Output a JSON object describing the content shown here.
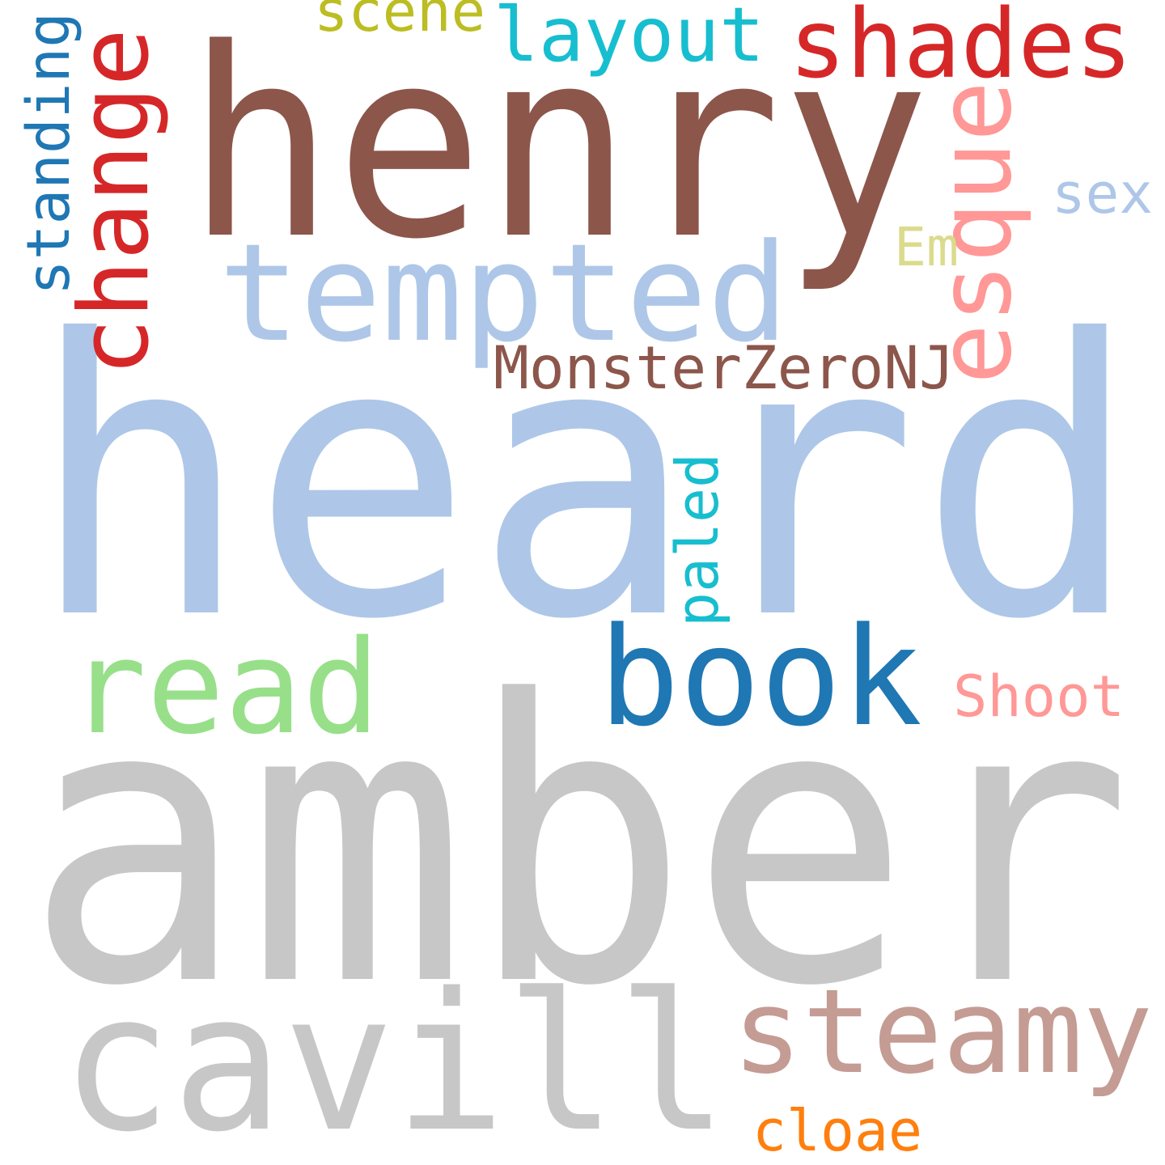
{
  "words": [
    {
      "text": "heard",
      "color": "#aec7e8",
      "vertical": false
    },
    {
      "text": "amber",
      "color": "#c7c7c7",
      "vertical": false
    },
    {
      "text": "henry",
      "color": "#8c564b",
      "vertical": false
    },
    {
      "text": "tempted",
      "color": "#aec7e8",
      "vertical": false
    },
    {
      "text": "cavill",
      "color": "#c7c7c7",
      "vertical": false
    },
    {
      "text": "steamy",
      "color": "#c49c94",
      "vertical": false
    },
    {
      "text": "book",
      "color": "#1f77b4",
      "vertical": false
    },
    {
      "text": "read",
      "color": "#98df8a",
      "vertical": false
    },
    {
      "text": "shades",
      "color": "#d62728",
      "vertical": false
    },
    {
      "text": "layout",
      "color": "#17becf",
      "vertical": false
    },
    {
      "text": "scene",
      "color": "#bcbd22",
      "vertical": false
    },
    {
      "text": "change",
      "color": "#d62728",
      "vertical": true
    },
    {
      "text": "standing",
      "color": "#1f77b4",
      "vertical": true
    },
    {
      "text": "esque",
      "color": "#ff9896",
      "vertical": true
    },
    {
      "text": "paled",
      "color": "#17becf",
      "vertical": true
    },
    {
      "text": "MonsterZeroNJ",
      "color": "#8c564b",
      "vertical": false
    },
    {
      "text": "Em",
      "color": "#dbdb8d",
      "vertical": false
    },
    {
      "text": "sex",
      "color": "#aec7e8",
      "vertical": false
    },
    {
      "text": "Shoot",
      "color": "#ff9896",
      "vertical": false
    },
    {
      "text": "cloae",
      "color": "#ff7f0e",
      "vertical": false
    }
  ]
}
